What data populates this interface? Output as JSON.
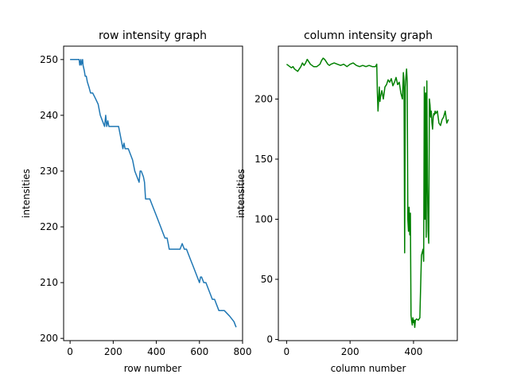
{
  "chart_data": [
    {
      "type": "line",
      "title": "row intensity graph",
      "xlabel": "row number",
      "ylabel": "intensities",
      "xlim": [
        -30,
        800
      ],
      "ylim": [
        199.6,
        252.4
      ],
      "xticks": [
        0,
        200,
        400,
        600,
        800
      ],
      "yticks": [
        200,
        210,
        220,
        230,
        240,
        250
      ],
      "color": "#1f77b4",
      "x": [
        0,
        15,
        30,
        42,
        45,
        50,
        52,
        58,
        60,
        66,
        70,
        75,
        80,
        88,
        95,
        105,
        118,
        130,
        140,
        160,
        165,
        170,
        175,
        180,
        185,
        190,
        195,
        200,
        205,
        215,
        225,
        240,
        245,
        250,
        255,
        260,
        265,
        270,
        280,
        290,
        300,
        310,
        320,
        325,
        330,
        340,
        345,
        350,
        360,
        370,
        380,
        400,
        410,
        420,
        430,
        440,
        450,
        455,
        460,
        470,
        480,
        490,
        500,
        510,
        520,
        530,
        540,
        550,
        560,
        570,
        580,
        590,
        600,
        605,
        610,
        620,
        630,
        640,
        650,
        660,
        670,
        680,
        690,
        700,
        715,
        740,
        760,
        770
      ],
      "y": [
        250,
        250,
        250,
        250,
        249,
        250,
        249,
        250,
        249,
        248,
        247,
        247,
        246,
        245,
        244,
        244,
        243,
        242,
        240,
        238,
        240,
        238,
        239,
        238,
        238,
        238,
        238,
        238,
        238,
        238,
        238,
        235,
        234,
        235,
        234,
        234,
        234,
        234,
        233,
        232,
        230,
        229,
        228,
        230,
        230,
        229,
        228,
        225,
        225,
        225,
        224,
        222,
        221,
        220,
        219,
        218,
        218,
        217,
        216,
        216,
        216,
        216,
        216,
        216,
        217,
        216,
        216,
        215,
        214,
        213,
        212,
        211,
        210,
        211,
        211,
        210,
        210,
        209,
        208,
        207,
        207,
        206,
        205,
        205,
        205,
        204,
        203,
        202
      ]
    },
    {
      "type": "line",
      "title": "column intensity graph",
      "xlabel": "column number",
      "ylabel": "intensities",
      "xlim": [
        -26,
        538
      ],
      "ylim": [
        -1,
        244
      ],
      "xticks": [
        0,
        200,
        400
      ],
      "yticks": [
        0,
        50,
        100,
        150,
        200
      ],
      "color": "#008000",
      "x": [
        0,
        5,
        10,
        15,
        20,
        25,
        30,
        35,
        40,
        45,
        50,
        55,
        60,
        65,
        70,
        75,
        80,
        85,
        90,
        95,
        100,
        105,
        110,
        115,
        120,
        125,
        130,
        135,
        140,
        150,
        160,
        170,
        180,
        190,
        200,
        210,
        220,
        230,
        240,
        250,
        260,
        270,
        280,
        284,
        286,
        288,
        290,
        292,
        294,
        296,
        300,
        305,
        310,
        315,
        320,
        325,
        330,
        335,
        340,
        345,
        350,
        355,
        360,
        365,
        368,
        370,
        372,
        374,
        376,
        378,
        380,
        382,
        384,
        386,
        388,
        390,
        392,
        394,
        396,
        398,
        400,
        402,
        404,
        406,
        410,
        415,
        420,
        425,
        430,
        432,
        434,
        436,
        438,
        440,
        442,
        444,
        446,
        448,
        450,
        452,
        454,
        456,
        458,
        460,
        462,
        464,
        466,
        468,
        470,
        475,
        480,
        485,
        490,
        495,
        500,
        505,
        510
      ],
      "y": [
        229,
        228,
        227,
        226,
        227,
        225,
        224,
        223,
        225,
        227,
        230,
        228,
        230,
        233,
        231,
        229,
        228,
        227,
        227,
        227,
        228,
        229,
        232,
        234,
        233,
        231,
        229,
        228,
        229,
        230,
        229,
        228,
        229,
        227,
        229,
        230,
        228,
        227,
        228,
        227,
        228,
        227,
        227,
        229,
        205,
        190,
        200,
        210,
        198,
        202,
        207,
        200,
        210,
        212,
        216,
        214,
        217,
        211,
        214,
        218,
        212,
        214,
        205,
        200,
        222,
        215,
        72,
        210,
        218,
        225,
        215,
        100,
        90,
        110,
        87,
        105,
        20,
        15,
        12,
        18,
        14,
        16,
        10,
        16,
        17,
        16,
        18,
        70,
        75,
        65,
        210,
        100,
        205,
        85,
        215,
        130,
        90,
        80,
        200,
        195,
        185,
        190,
        180,
        175,
        185,
        188,
        187,
        190,
        188,
        190,
        180,
        178,
        183,
        185,
        190,
        180,
        183
      ]
    }
  ]
}
